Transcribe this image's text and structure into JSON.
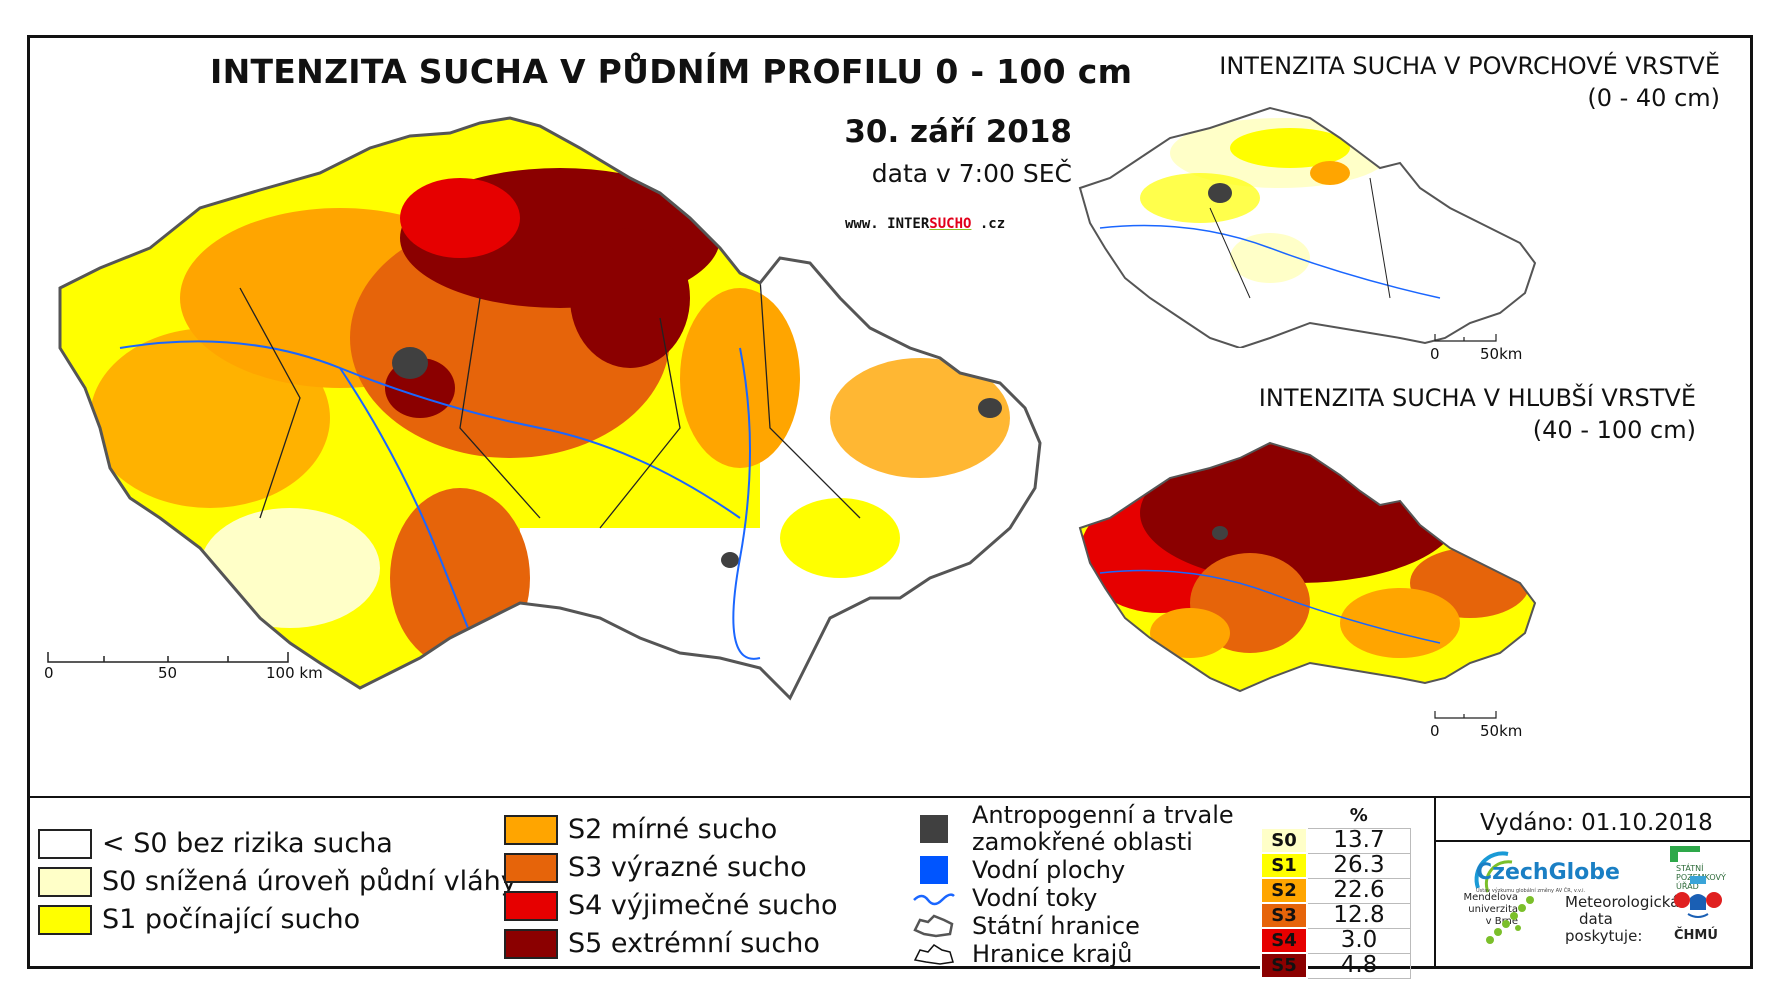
{
  "main": {
    "title": "INTENZITA SUCHA V PŮDNÍM PROFILU 0 - 100 cm",
    "date": "30. září 2018",
    "data_time": "data v 7:00 SEČ",
    "website_prefix": "www. INTER",
    "website_accent": "SUCHO",
    "website_suffix": " .cz",
    "scale": {
      "ticks": [
        "0",
        "50",
        "100 km"
      ]
    }
  },
  "inset_surface": {
    "title_line1": "INTENZITA SUCHA V POVRCHOVÉ VRSTVĚ",
    "title_line2": "(0 - 40 cm)",
    "scale": {
      "ticks": [
        "0",
        "50km"
      ]
    }
  },
  "inset_deep": {
    "title_line1": "INTENZITA SUCHA V HLUBŠÍ VRSTVĚ",
    "title_line2": "(40 - 100 cm)",
    "scale": {
      "ticks": [
        "0",
        "50km"
      ]
    }
  },
  "legend": {
    "classes": [
      {
        "label": "< S0 bez rizika sucha",
        "color": "#ffffff"
      },
      {
        "label": "S0 snížená úroveň půdní vláhy",
        "color": "#ffffc8"
      },
      {
        "label": "S1 počínající sucho",
        "color": "#ffff00"
      },
      {
        "label": "S2 mírné sucho",
        "color": "#ffa500"
      },
      {
        "label": "S3 výrazné sucho",
        "color": "#e6640a"
      },
      {
        "label": "S4 výjimečné sucho",
        "color": "#e60000"
      },
      {
        "label": "S5 extrémní sucho",
        "color": "#8b0000"
      }
    ],
    "symbols": [
      {
        "label_line1": "Antropogenní a trvale",
        "label_line2": "zamokřené oblasti",
        "color": "#404040",
        "icon": "dark-square-icon"
      },
      {
        "label": "Vodní plochy",
        "color": "#0055ff",
        "icon": "blue-square-icon"
      },
      {
        "label": "Vodní toky",
        "color": "#1a66ff",
        "icon": "river-line-icon"
      },
      {
        "label": "Státní hranice",
        "color": "#555555",
        "icon": "state-border-icon"
      },
      {
        "label": "Hranice krajů",
        "color": "#111111",
        "icon": "region-border-icon"
      }
    ]
  },
  "percent_table": {
    "header": "%",
    "rows": [
      {
        "cls": "S0",
        "value": "13.7",
        "color": "#ffffc8"
      },
      {
        "cls": "S1",
        "value": "26.3",
        "color": "#ffff00"
      },
      {
        "cls": "S2",
        "value": "22.6",
        "color": "#ffa500"
      },
      {
        "cls": "S3",
        "value": "12.8",
        "color": "#e6640a"
      },
      {
        "cls": "S4",
        "value": "3.0",
        "color": "#e60000"
      },
      {
        "cls": "S5",
        "value": "4.8",
        "color": "#8b0000"
      }
    ]
  },
  "credits": {
    "issued": "Vydáno: 01.10.2018",
    "czechglobe": "CzechGlobe",
    "czechglobe_sub": "Ústav výzkumu globální změny AV ČR, v.v.i.",
    "spu_line1": "STÁTNÍ",
    "spu_line2": "POZEMKOVÝ",
    "spu_line3": "ÚŘAD",
    "mendel_line1": "Mendelova",
    "mendel_line2": "univerzita",
    "mendel_line3": "v Brně",
    "meteo_line1": "Meteorologická",
    "meteo_line2": "data",
    "meteo_line3": "poskytuje:",
    "chmu": "ČHMÚ"
  }
}
